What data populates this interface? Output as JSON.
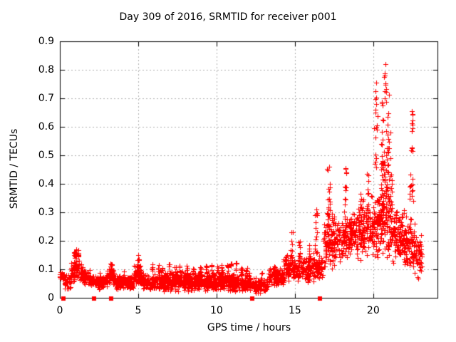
{
  "figure": {
    "background": "#ffffff",
    "border_color": "#000000",
    "grid_color": "#b0b0b0",
    "marker_color": "#ff0000"
  },
  "chart_data": {
    "type": "scatter",
    "title": "Day 309 of 2016, SRMTID for receiver p001",
    "xlabel": "GPS time / hours",
    "ylabel": "SRMTID / TECUs",
    "xlim": [
      0,
      24.1
    ],
    "ylim": [
      0,
      0.9
    ],
    "xticks": [
      0,
      5,
      10,
      15,
      20
    ],
    "xtick_labels": [
      "0",
      "5",
      "10",
      "15",
      "20"
    ],
    "yticks": [
      0,
      0.1,
      0.2,
      0.3,
      0.4,
      0.5,
      0.6,
      0.7,
      0.8,
      0.9
    ],
    "ytick_labels": [
      "0",
      "0.1",
      "0.2",
      "0.3",
      "0.4",
      "0.5",
      "0.6",
      "0.7",
      "0.8",
      "0.9"
    ],
    "grid": "dashed-major",
    "legend": "none",
    "marker": "plus",
    "marker_color": "#ff0000",
    "seed": 309,
    "zero_markers_x": [
      0.23,
      2.2,
      3.27,
      12.3,
      16.6
    ],
    "scatter_bands": [
      {
        "x0": 0.0,
        "x1": 0.3,
        "lo": 0.055,
        "hi": 0.095,
        "n": 25
      },
      {
        "x0": 0.3,
        "x1": 0.7,
        "lo": 0.03,
        "hi": 0.09,
        "n": 35
      },
      {
        "x0": 0.7,
        "x1": 0.9,
        "lo": 0.05,
        "hi": 0.13,
        "n": 25
      },
      {
        "x0": 0.9,
        "x1": 1.25,
        "lo": 0.06,
        "hi": 0.165,
        "n": 45
      },
      {
        "x0": 1.25,
        "x1": 1.5,
        "lo": 0.05,
        "hi": 0.12,
        "n": 30
      },
      {
        "x0": 1.5,
        "x1": 2.0,
        "lo": 0.04,
        "hi": 0.1,
        "n": 55
      },
      {
        "x0": 2.0,
        "x1": 3.0,
        "lo": 0.03,
        "hi": 0.08,
        "n": 110
      },
      {
        "x0": 3.0,
        "x1": 3.5,
        "lo": 0.04,
        "hi": 0.11,
        "n": 60
      },
      {
        "x0": 3.5,
        "x1": 4.7,
        "lo": 0.025,
        "hi": 0.085,
        "n": 130
      },
      {
        "x0": 4.7,
        "x1": 5.3,
        "lo": 0.04,
        "hi": 0.12,
        "n": 70
      },
      {
        "x0": 5.3,
        "x1": 12.2,
        "lo": 0.02,
        "hi": 0.095,
        "n": 850
      },
      {
        "x0": 12.2,
        "x1": 13.3,
        "lo": 0.015,
        "hi": 0.07,
        "n": 110
      },
      {
        "x0": 13.3,
        "x1": 14.3,
        "lo": 0.04,
        "hi": 0.11,
        "n": 110
      },
      {
        "x0": 14.3,
        "x1": 15.1,
        "lo": 0.05,
        "hi": 0.15,
        "n": 90
      },
      {
        "x0": 15.1,
        "x1": 16.1,
        "lo": 0.05,
        "hi": 0.15,
        "n": 100
      },
      {
        "x0": 16.1,
        "x1": 16.8,
        "lo": 0.05,
        "hi": 0.18,
        "n": 70
      },
      {
        "x0": 16.8,
        "x1": 17.6,
        "lo": 0.08,
        "hi": 0.3,
        "n": 110
      },
      {
        "x0": 17.6,
        "x1": 18.6,
        "lo": 0.12,
        "hi": 0.28,
        "n": 110
      },
      {
        "x0": 18.6,
        "x1": 19.6,
        "lo": 0.13,
        "hi": 0.33,
        "n": 120
      },
      {
        "x0": 19.6,
        "x1": 20.5,
        "lo": 0.13,
        "hi": 0.37,
        "n": 130
      },
      {
        "x0": 20.5,
        "x1": 21.2,
        "lo": 0.12,
        "hi": 0.47,
        "n": 130
      },
      {
        "x0": 21.2,
        "x1": 22.0,
        "lo": 0.1,
        "hi": 0.32,
        "n": 110
      },
      {
        "x0": 22.0,
        "x1": 22.8,
        "lo": 0.08,
        "hi": 0.3,
        "n": 100
      },
      {
        "x0": 22.8,
        "x1": 23.1,
        "lo": 0.05,
        "hi": 0.22,
        "n": 30
      }
    ],
    "scatter_spikes": [
      {
        "x": 0.95,
        "w": 0.1,
        "lo": 0.15,
        "hi": 0.17,
        "n": 4
      },
      {
        "x": 1.05,
        "w": 0.3,
        "lo": 0.11,
        "hi": 0.168,
        "n": 20
      },
      {
        "x": 2.55,
        "w": 0.08,
        "lo": 0.06,
        "hi": 0.09,
        "n": 4
      },
      {
        "x": 3.25,
        "w": 0.18,
        "lo": 0.08,
        "hi": 0.128,
        "n": 10
      },
      {
        "x": 4.1,
        "w": 0.08,
        "lo": 0.06,
        "hi": 0.095,
        "n": 4
      },
      {
        "x": 5.0,
        "w": 0.18,
        "lo": 0.09,
        "hi": 0.148,
        "n": 12
      },
      {
        "x": 5.9,
        "w": 0.08,
        "lo": 0.085,
        "hi": 0.12,
        "n": 5
      },
      {
        "x": 6.3,
        "w": 0.08,
        "lo": 0.085,
        "hi": 0.12,
        "n": 5
      },
      {
        "x": 6.55,
        "w": 0.08,
        "lo": 0.085,
        "hi": 0.115,
        "n": 5
      },
      {
        "x": 7.0,
        "w": 0.08,
        "lo": 0.085,
        "hi": 0.12,
        "n": 5
      },
      {
        "x": 7.35,
        "w": 0.08,
        "lo": 0.085,
        "hi": 0.115,
        "n": 5
      },
      {
        "x": 7.65,
        "w": 0.08,
        "lo": 0.085,
        "hi": 0.12,
        "n": 5
      },
      {
        "x": 8.1,
        "w": 0.08,
        "lo": 0.085,
        "hi": 0.115,
        "n": 5
      },
      {
        "x": 8.5,
        "w": 0.08,
        "lo": 0.085,
        "hi": 0.11,
        "n": 5
      },
      {
        "x": 9.0,
        "w": 0.08,
        "lo": 0.085,
        "hi": 0.12,
        "n": 5
      },
      {
        "x": 9.35,
        "w": 0.08,
        "lo": 0.085,
        "hi": 0.115,
        "n": 5
      },
      {
        "x": 9.7,
        "w": 0.08,
        "lo": 0.085,
        "hi": 0.12,
        "n": 5
      },
      {
        "x": 10.05,
        "w": 0.08,
        "lo": 0.085,
        "hi": 0.115,
        "n": 5
      },
      {
        "x": 10.35,
        "w": 0.08,
        "lo": 0.085,
        "hi": 0.12,
        "n": 5
      },
      {
        "x": 10.7,
        "w": 0.08,
        "lo": 0.085,
        "hi": 0.115,
        "n": 5
      },
      {
        "x": 10.95,
        "w": 0.08,
        "lo": 0.085,
        "hi": 0.12,
        "n": 5
      },
      {
        "x": 11.25,
        "w": 0.08,
        "lo": 0.085,
        "hi": 0.13,
        "n": 5
      },
      {
        "x": 11.6,
        "w": 0.08,
        "lo": 0.085,
        "hi": 0.115,
        "n": 5
      },
      {
        "x": 11.9,
        "w": 0.08,
        "lo": 0.085,
        "hi": 0.12,
        "n": 5
      },
      {
        "x": 12.9,
        "w": 0.08,
        "lo": 0.06,
        "hi": 0.09,
        "n": 4
      },
      {
        "x": 13.7,
        "w": 0.1,
        "lo": 0.08,
        "hi": 0.115,
        "n": 5
      },
      {
        "x": 14.45,
        "w": 0.1,
        "lo": 0.1,
        "hi": 0.16,
        "n": 6
      },
      {
        "x": 14.8,
        "w": 0.15,
        "lo": 0.14,
        "hi": 0.23,
        "n": 10
      },
      {
        "x": 15.3,
        "w": 0.12,
        "lo": 0.12,
        "hi": 0.2,
        "n": 8
      },
      {
        "x": 15.95,
        "w": 0.12,
        "lo": 0.12,
        "hi": 0.185,
        "n": 8
      },
      {
        "x": 16.35,
        "w": 0.15,
        "lo": 0.16,
        "hi": 0.31,
        "n": 12
      },
      {
        "x": 17.15,
        "w": 0.25,
        "lo": 0.22,
        "hi": 0.46,
        "n": 24
      },
      {
        "x": 18.25,
        "w": 0.18,
        "lo": 0.25,
        "hi": 0.46,
        "n": 16
      },
      {
        "x": 19.3,
        "w": 0.2,
        "lo": 0.26,
        "hi": 0.37,
        "n": 12
      },
      {
        "x": 19.65,
        "w": 0.12,
        "lo": 0.3,
        "hi": 0.44,
        "n": 8
      },
      {
        "x": 20.15,
        "w": 0.2,
        "lo": 0.45,
        "hi": 0.6,
        "n": 8
      },
      {
        "x": 20.2,
        "w": 0.15,
        "lo": 0.6,
        "hi": 0.76,
        "n": 8
      },
      {
        "x": 20.6,
        "w": 0.3,
        "lo": 0.35,
        "hi": 0.5,
        "n": 14
      },
      {
        "x": 20.75,
        "w": 0.5,
        "lo": 0.45,
        "hi": 0.72,
        "n": 28
      },
      {
        "x": 20.8,
        "w": 0.15,
        "lo": 0.72,
        "hi": 0.8,
        "n": 6
      },
      {
        "x": 21.0,
        "w": 0.2,
        "lo": 0.38,
        "hi": 0.58,
        "n": 10
      },
      {
        "x": 22.45,
        "w": 0.25,
        "lo": 0.33,
        "hi": 0.53,
        "n": 16
      },
      {
        "x": 22.48,
        "w": 0.12,
        "lo": 0.57,
        "hi": 0.66,
        "n": 6
      },
      {
        "x": 23.0,
        "w": 0.1,
        "lo": 0.15,
        "hi": 0.22,
        "n": 6
      }
    ],
    "outliers": [
      {
        "x": 20.8,
        "y": 0.82
      },
      {
        "x": 20.75,
        "y": 0.78
      },
      {
        "x": 20.7,
        "y": 0.775
      },
      {
        "x": 20.2,
        "y": 0.755
      },
      {
        "x": 22.45,
        "y": 0.655
      },
      {
        "x": 22.5,
        "y": 0.645
      },
      {
        "x": 17.2,
        "y": 0.46
      },
      {
        "x": 18.25,
        "y": 0.455
      },
      {
        "x": 18.3,
        "y": 0.44
      },
      {
        "x": 19.6,
        "y": 0.435
      },
      {
        "x": 20.1,
        "y": 0.47
      },
      {
        "x": 16.35,
        "y": 0.31
      },
      {
        "x": 14.8,
        "y": 0.23
      },
      {
        "x": 5.0,
        "y": 0.15
      },
      {
        "x": 1.05,
        "y": 0.17
      },
      {
        "x": 23.05,
        "y": 0.22
      }
    ]
  }
}
